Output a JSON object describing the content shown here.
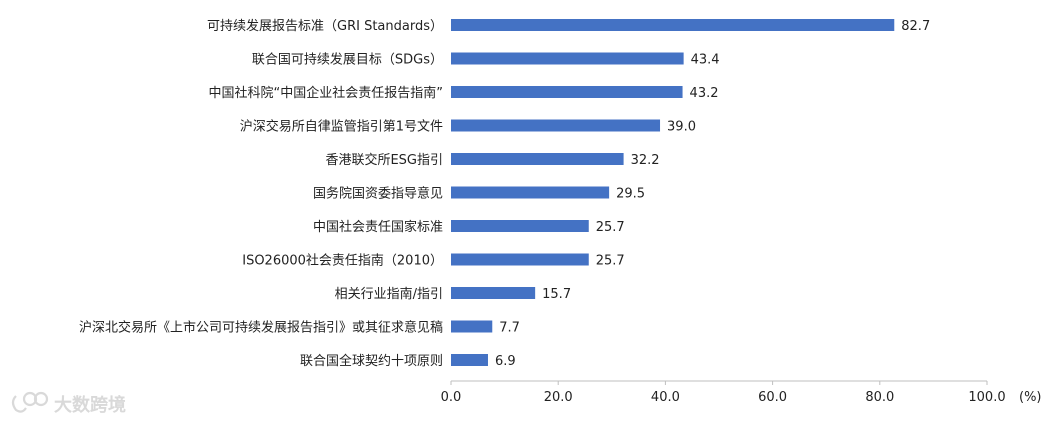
{
  "chart_data": {
    "type": "bar",
    "orientation": "horizontal",
    "categories": [
      "可持续发展报告标准（GRI Standards）",
      "联合国可持续发展目标（SDGs）",
      "中国社科院“中国企业社会责任报告指南”",
      "沪深交易所自律监管指引第1号文件",
      "香港联交所ESG指引",
      "国务院国资委指导意见",
      "中国社会责任国家标准",
      "ISO26000社会责任指南（2010）",
      "相关行业指南/指引",
      "沪深北交易所《上市公司可持续发展报告指引》或其征求意见稿",
      "联合国全球契约十项原则"
    ],
    "values": [
      82.7,
      43.4,
      43.2,
      39.0,
      32.2,
      29.5,
      25.7,
      25.7,
      15.7,
      7.7,
      6.9
    ],
    "value_labels": [
      "82.7",
      "43.4",
      "43.2",
      "39.0",
      "32.2",
      "29.5",
      "25.7",
      "25.7",
      "15.7",
      "7.7",
      "6.9"
    ],
    "xlim": [
      0,
      100
    ],
    "x_ticks": [
      0,
      20,
      40,
      60,
      80,
      100
    ],
    "x_tick_labels": [
      "0.0",
      "20.0",
      "40.0",
      "60.0",
      "80.0",
      "100.0"
    ],
    "unit": "(%)",
    "bar_color": "#4472c4",
    "grid": false,
    "legend": "none"
  },
  "watermark": {
    "text": "大数跨境",
    "color": "#d9d9d9"
  }
}
